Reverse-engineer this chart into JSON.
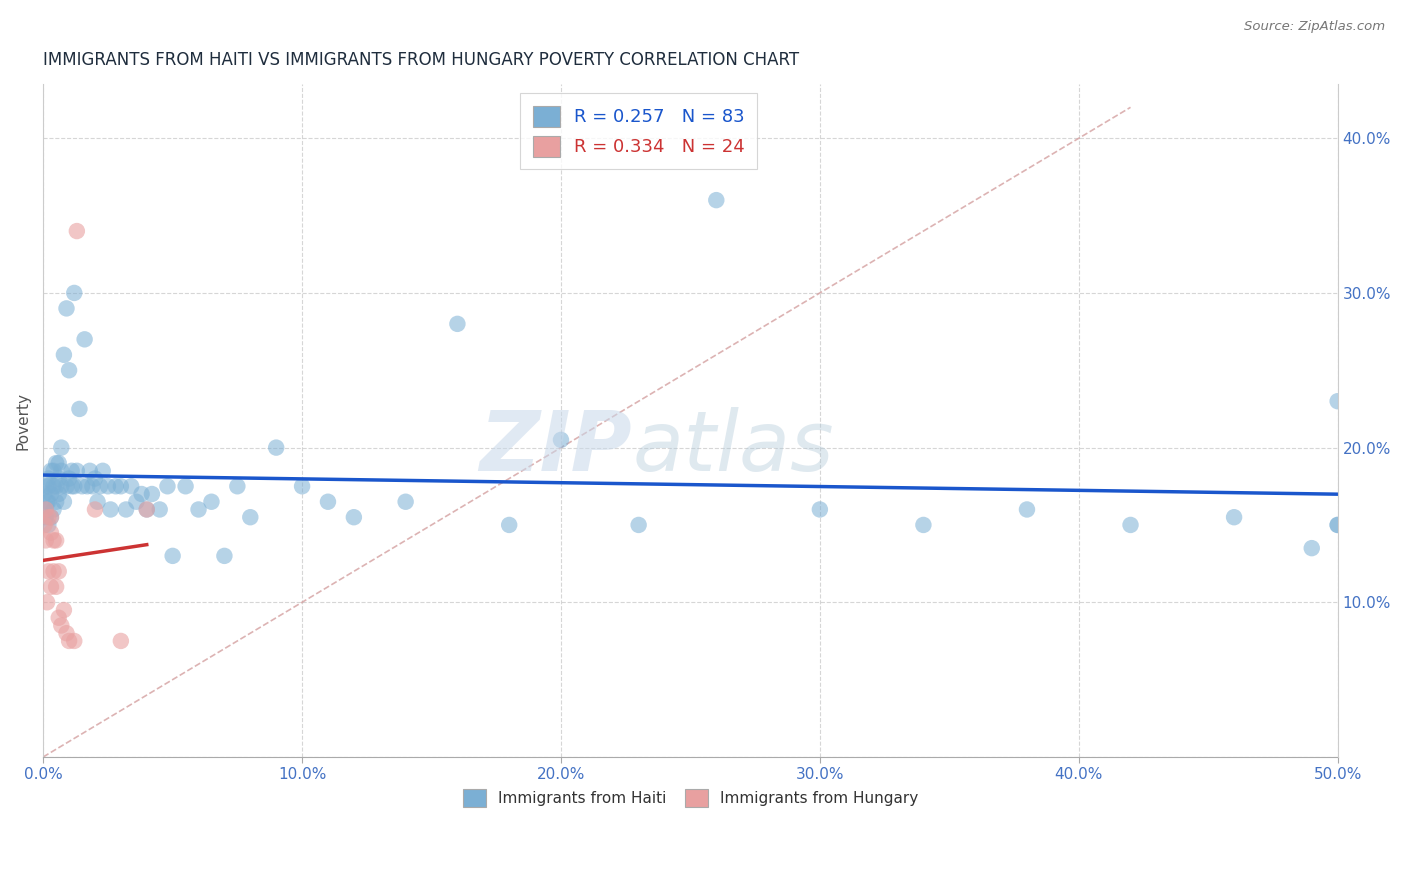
{
  "title": "IMMIGRANTS FROM HAITI VS IMMIGRANTS FROM HUNGARY POVERTY CORRELATION CHART",
  "source": "Source: ZipAtlas.com",
  "ylabel": "Poverty",
  "xlim": [
    0.0,
    0.5
  ],
  "ylim": [
    0.0,
    0.42
  ],
  "haiti_color": "#7bafd4",
  "hungary_color": "#e8a0a0",
  "haiti_line_color": "#1a56cc",
  "hungary_line_color": "#cc3333",
  "diag_line_color": "#d4a0a0",
  "haiti_R": 0.257,
  "haiti_N": 83,
  "hungary_R": 0.334,
  "hungary_N": 24,
  "axis_color": "#4472c4",
  "title_color": "#1f2d3d",
  "grid_color": "#cccccc",
  "legend_haiti_text_color": "#1a56cc",
  "legend_hungary_text_color": "#cc3333",
  "haiti_x": [
    0.0005,
    0.001,
    0.001,
    0.001,
    0.0015,
    0.002,
    0.002,
    0.002,
    0.002,
    0.003,
    0.003,
    0.003,
    0.004,
    0.004,
    0.004,
    0.005,
    0.005,
    0.005,
    0.006,
    0.006,
    0.006,
    0.007,
    0.007,
    0.007,
    0.008,
    0.008,
    0.009,
    0.009,
    0.01,
    0.01,
    0.011,
    0.011,
    0.012,
    0.012,
    0.013,
    0.014,
    0.015,
    0.016,
    0.017,
    0.018,
    0.019,
    0.02,
    0.021,
    0.022,
    0.023,
    0.025,
    0.026,
    0.028,
    0.03,
    0.032,
    0.034,
    0.036,
    0.038,
    0.04,
    0.042,
    0.045,
    0.048,
    0.05,
    0.055,
    0.06,
    0.065,
    0.07,
    0.075,
    0.08,
    0.09,
    0.1,
    0.11,
    0.12,
    0.14,
    0.16,
    0.18,
    0.2,
    0.23,
    0.26,
    0.3,
    0.34,
    0.38,
    0.42,
    0.46,
    0.49,
    0.5,
    0.5,
    0.5
  ],
  "haiti_y": [
    0.17,
    0.16,
    0.155,
    0.175,
    0.165,
    0.15,
    0.175,
    0.165,
    0.18,
    0.155,
    0.17,
    0.185,
    0.16,
    0.175,
    0.185,
    0.165,
    0.175,
    0.19,
    0.17,
    0.18,
    0.19,
    0.175,
    0.185,
    0.2,
    0.165,
    0.26,
    0.175,
    0.29,
    0.18,
    0.25,
    0.175,
    0.185,
    0.175,
    0.3,
    0.185,
    0.225,
    0.175,
    0.27,
    0.175,
    0.185,
    0.175,
    0.18,
    0.165,
    0.175,
    0.185,
    0.175,
    0.16,
    0.175,
    0.175,
    0.16,
    0.175,
    0.165,
    0.17,
    0.16,
    0.17,
    0.16,
    0.175,
    0.13,
    0.175,
    0.16,
    0.165,
    0.13,
    0.175,
    0.155,
    0.2,
    0.175,
    0.165,
    0.155,
    0.165,
    0.28,
    0.15,
    0.205,
    0.15,
    0.36,
    0.16,
    0.15,
    0.16,
    0.15,
    0.155,
    0.135,
    0.15,
    0.23,
    0.15
  ],
  "hungary_x": [
    0.0005,
    0.001,
    0.001,
    0.0015,
    0.002,
    0.002,
    0.003,
    0.003,
    0.003,
    0.004,
    0.004,
    0.005,
    0.005,
    0.006,
    0.006,
    0.007,
    0.008,
    0.009,
    0.01,
    0.012,
    0.013,
    0.02,
    0.03,
    0.04
  ],
  "hungary_y": [
    0.15,
    0.14,
    0.16,
    0.1,
    0.12,
    0.155,
    0.11,
    0.145,
    0.155,
    0.12,
    0.14,
    0.11,
    0.14,
    0.09,
    0.12,
    0.085,
    0.095,
    0.08,
    0.075,
    0.075,
    0.34,
    0.16,
    0.075,
    0.16
  ]
}
